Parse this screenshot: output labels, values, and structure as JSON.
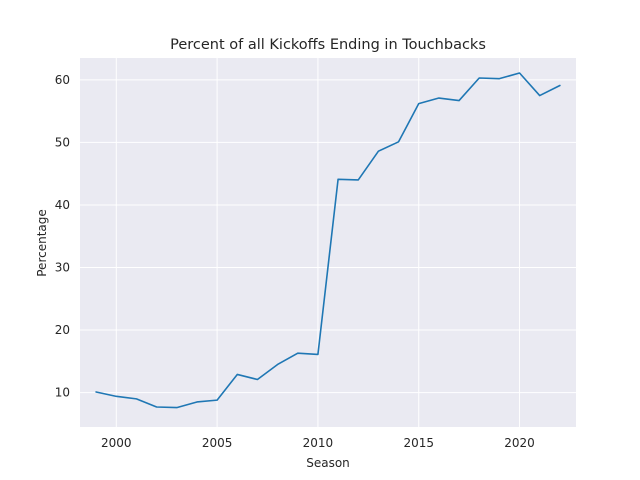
{
  "chart_data": {
    "type": "line",
    "title": "Percent of all Kickoffs Ending in Touchbacks",
    "xlabel": "Season",
    "ylabel": "Percentage",
    "xlim": [
      1998.2,
      2022.8
    ],
    "ylim": [
      4.5,
      63.5
    ],
    "xticks": [
      2000,
      2005,
      2010,
      2015,
      2020
    ],
    "yticks": [
      10,
      20,
      30,
      40,
      50,
      60
    ],
    "grid": true,
    "background": "#eaeaf2",
    "series": [
      {
        "color": "#1f77b4",
        "x": [
          1999,
          2000,
          2001,
          2002,
          2003,
          2004,
          2005,
          2006,
          2007,
          2008,
          2009,
          2010,
          2011,
          2012,
          2013,
          2014,
          2015,
          2016,
          2017,
          2018,
          2019,
          2020,
          2021,
          2022
        ],
        "y": [
          10.1,
          9.4,
          9.0,
          7.7,
          7.6,
          8.5,
          8.8,
          12.9,
          12.1,
          14.5,
          16.3,
          16.1,
          44.1,
          44.0,
          48.6,
          50.1,
          56.2,
          57.1,
          56.7,
          60.3,
          60.2,
          61.1,
          57.5,
          59.1
        ]
      }
    ]
  }
}
